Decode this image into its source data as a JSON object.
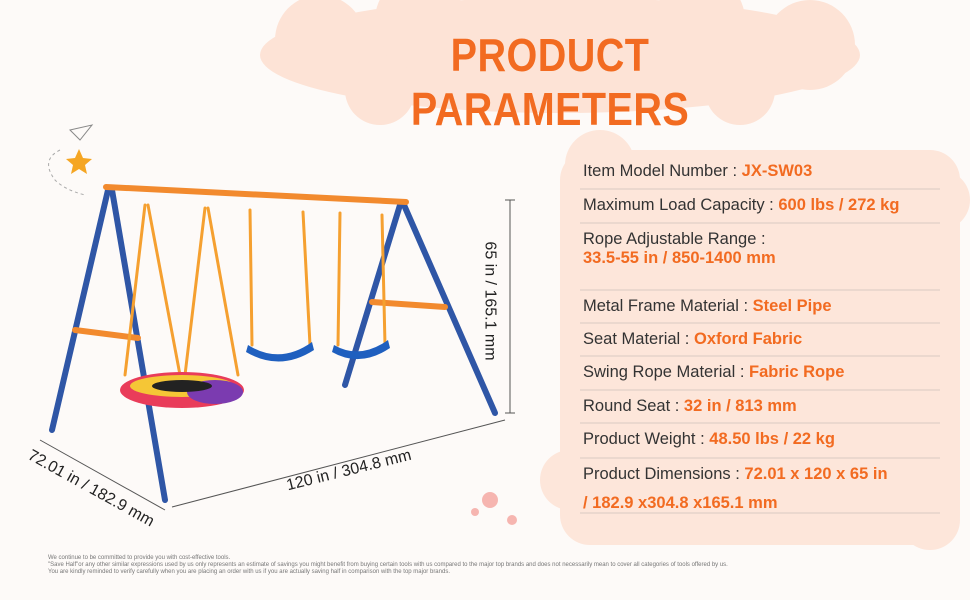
{
  "title": "PRODUCT PARAMETERS",
  "parameters": [
    {
      "label": "Item Model Number :",
      "value": "JX-SW03"
    },
    {
      "label": "Maximum Load Capacity :",
      "value": "600 lbs / 272 kg"
    },
    {
      "label": "Rope Adjustable Range :",
      "value": "33.5-55 in / 850-1400 mm"
    },
    {
      "label": "Metal Frame Material :",
      "value": "Steel Pipe"
    },
    {
      "label": "Seat Material :",
      "value": "Oxford Fabric"
    },
    {
      "label": "Swing Rope Material :",
      "value": "Fabric Rope"
    },
    {
      "label": "Round Seat :",
      "value": "32 in / 813 mm"
    },
    {
      "label": "Product Weight :",
      "value": "48.50 lbs / 22 kg"
    },
    {
      "label": "Product Dimensions :",
      "value": "72.01 x 120 x 65 in",
      "continuation": "/ 182.9 x304.8 x165.1 mm"
    }
  ],
  "dimensions": {
    "height": "65 in / 165.1 mm",
    "length": "120 in / 304.8 mm",
    "depth": "72.01 in / 182.9 mm"
  },
  "disclaimer": [
    "We continue to be committed to provide you with cost-effective tools.",
    "\"Save Half\"or any other similar expressions used by us only represents an estimate of savings you might benefit from buying certain tools with us compared to the major top brands and does not necessarily mean to cover all categories of tools offered by us.",
    "You are kindly reminded to verify carefully when you are placing an order with us if you are actually saving half in comparison with the top major brands."
  ]
}
